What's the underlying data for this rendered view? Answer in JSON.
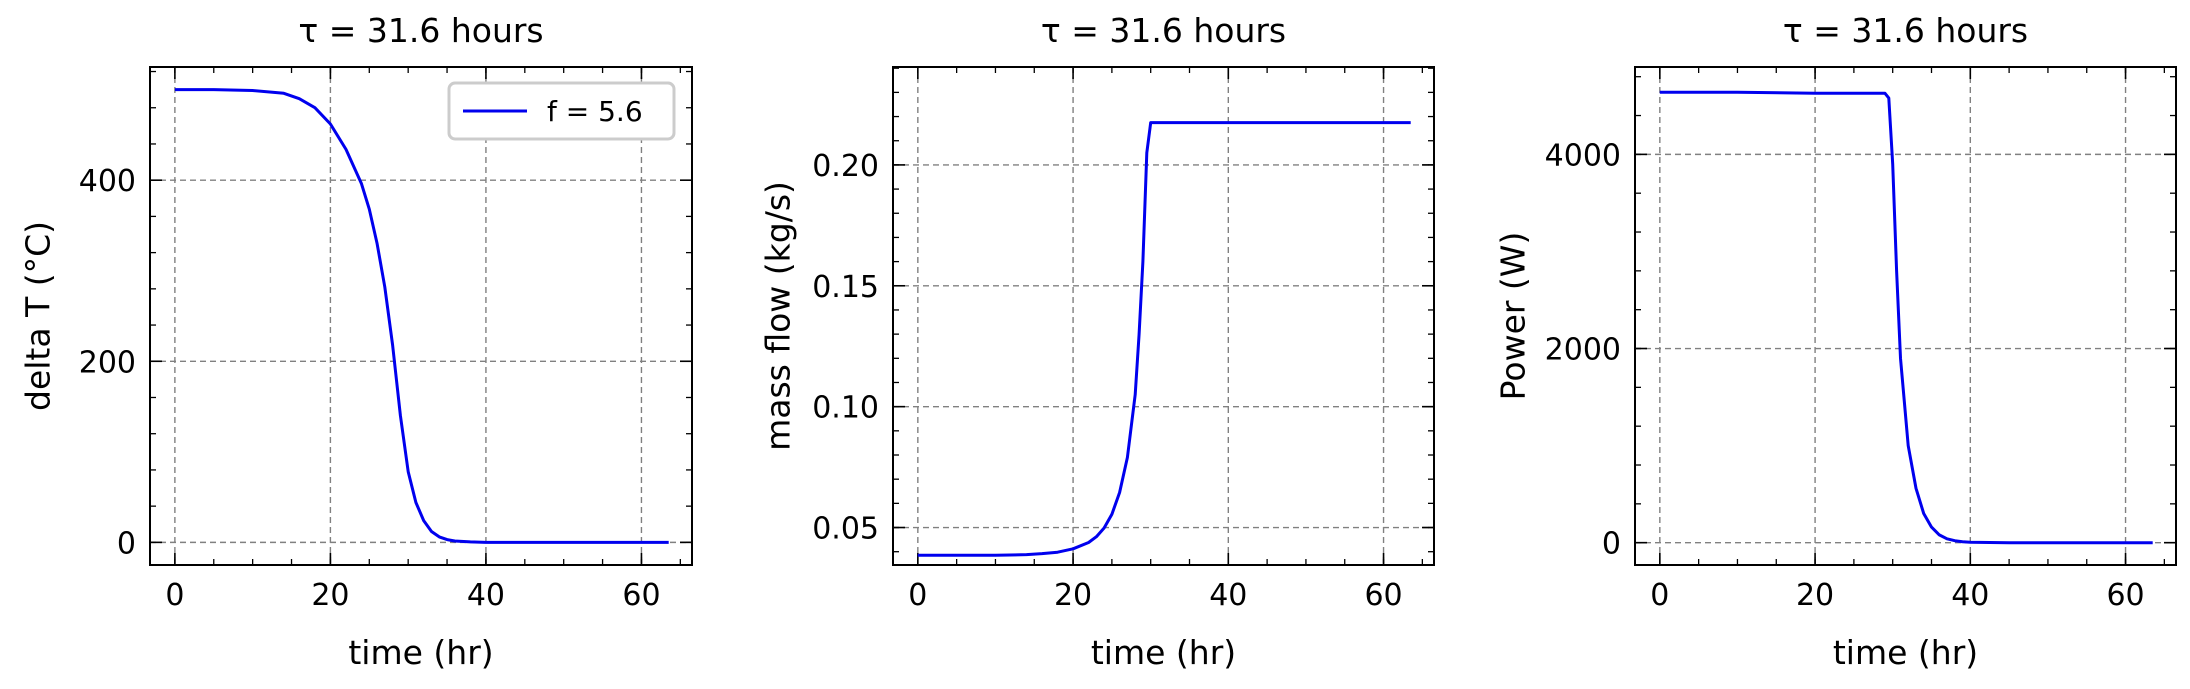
{
  "chart_data": [
    {
      "type": "line",
      "title": "τ = 31.6 hours",
      "xlabel": "time (hr)",
      "ylabel": "delta T (°C)",
      "xlim": [
        -3.2,
        66.5
      ],
      "ylim": [
        -25,
        525
      ],
      "xticks": [
        0,
        20,
        40,
        60
      ],
      "xtick_labels": [
        "0",
        "20",
        "40",
        "60"
      ],
      "yticks": [
        0,
        200,
        400
      ],
      "ytick_labels": [
        "0",
        "200",
        "400"
      ],
      "grid": true,
      "legend": {
        "placement": "top-right",
        "entries": [
          "f = 5.6"
        ]
      },
      "series": [
        {
          "name": "f = 5.6",
          "color": "#0000ee",
          "x": [
            0,
            5,
            10,
            14,
            16,
            18,
            20,
            22,
            24,
            25,
            26,
            27,
            28,
            29,
            30,
            31,
            32,
            33,
            34,
            35,
            36,
            38,
            40,
            50,
            63.5
          ],
          "y": [
            500,
            500,
            499,
            496,
            490,
            480,
            462,
            434,
            396,
            368,
            330,
            282,
            218,
            140,
            78,
            44,
            24,
            12,
            6,
            3,
            1.5,
            0.5,
            0,
            0,
            0
          ]
        }
      ]
    },
    {
      "type": "line",
      "title": "τ = 31.6 hours",
      "xlabel": "time (hr)",
      "ylabel": "mass flow (kg/s)",
      "xlim": [
        -3.2,
        66.5
      ],
      "ylim": [
        0.0345,
        0.2405
      ],
      "xticks": [
        0,
        20,
        40,
        60
      ],
      "xtick_labels": [
        "0",
        "20",
        "40",
        "60"
      ],
      "yticks": [
        0.05,
        0.1,
        0.15,
        0.2
      ],
      "ytick_labels": [
        "0.05",
        "0.10",
        "0.15",
        "0.20"
      ],
      "grid": true,
      "series": [
        {
          "color": "#0000ee",
          "x": [
            0,
            10,
            14,
            16,
            18,
            20,
            22,
            23,
            24,
            25,
            26,
            27,
            28,
            28.5,
            29,
            29.5,
            30,
            35,
            45,
            63.5
          ],
          "y": [
            0.0385,
            0.0385,
            0.0388,
            0.0392,
            0.0398,
            0.0412,
            0.0438,
            0.0462,
            0.0498,
            0.0555,
            0.0645,
            0.079,
            0.105,
            0.13,
            0.16,
            0.205,
            0.2175,
            0.2175,
            0.2175,
            0.2175
          ]
        }
      ]
    },
    {
      "type": "line",
      "title": "τ = 31.6 hours",
      "xlabel": "time (hr)",
      "ylabel": "Power (W)",
      "xlim": [
        -3.2,
        66.5
      ],
      "ylim": [
        -230,
        4900
      ],
      "xticks": [
        0,
        20,
        40,
        60
      ],
      "xtick_labels": [
        "0",
        "20",
        "40",
        "60"
      ],
      "yticks": [
        0,
        2000,
        4000
      ],
      "ytick_labels": [
        "0",
        "2000",
        "4000"
      ],
      "grid": true,
      "series": [
        {
          "color": "#0000ee",
          "x": [
            0,
            10,
            20,
            25,
            28,
            29,
            29.5,
            30,
            30.5,
            31,
            32,
            33,
            34,
            35,
            36,
            37,
            38,
            39,
            40,
            45,
            63.5
          ],
          "y": [
            4640,
            4640,
            4630,
            4630,
            4630,
            4630,
            4580,
            3900,
            2800,
            1900,
            1000,
            560,
            300,
            160,
            80,
            40,
            20,
            10,
            5,
            0,
            0
          ]
        }
      ]
    }
  ]
}
